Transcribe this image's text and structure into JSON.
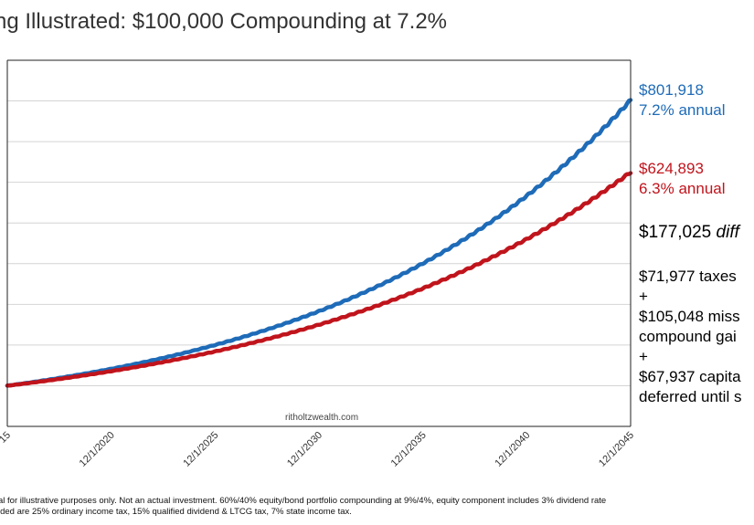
{
  "chart_data": {
    "type": "line",
    "title": "ng Illustrated: $100,000 Compounding at 7.2%",
    "x_ticks": [
      "15",
      "12/1/2020",
      "12/1/2025",
      "12/1/2030",
      "12/1/2035",
      "12/1/2040",
      "12/1/2045"
    ],
    "xlim": [
      "12/1/2015",
      "12/1/2045"
    ],
    "ylim": [
      0,
      900000
    ],
    "y_gridline_step": 100000,
    "grid": true,
    "series": [
      {
        "color": "#1e6bb8",
        "x": [
          2015,
          2020,
          2025,
          2030,
          2035,
          2040,
          2045
        ],
        "values": [
          100000,
          141600,
          200600,
          284000,
          402200,
          569500,
          801918
        ]
      },
      {
        "color": "#c0141c",
        "x": [
          2015,
          2020,
          2025,
          2030,
          2035,
          2040,
          2045
        ],
        "values": [
          100000,
          135700,
          184200,
          250000,
          339200,
          460400,
          624893
        ]
      }
    ],
    "watermark": "ritholtzwealth.com"
  },
  "annotations": {
    "blue_value": "$801,918",
    "blue_rate": "7.2% annual",
    "red_value": "$624,893",
    "red_rate": "6.3% annual",
    "diff_value": "$177,025",
    "diff_word": "diff",
    "taxes": "$71,977 taxes",
    "plus1": "+",
    "missed1": "$105,048 miss",
    "missed2": "compound gai",
    "plus2": "+",
    "capital1": "$67,937 capita",
    "capital2": "deferred until s"
  },
  "footnote": {
    "line1": "al for illustrative purposes only.  Not an actual investment. 60%/40% equity/bond portfolio compounding at 9%/4%, equity component includes 3% dividend rate",
    "line2": "ided are 25% ordinary income tax, 15% qualified dividend & LTCG tax, 7% state income tax."
  }
}
